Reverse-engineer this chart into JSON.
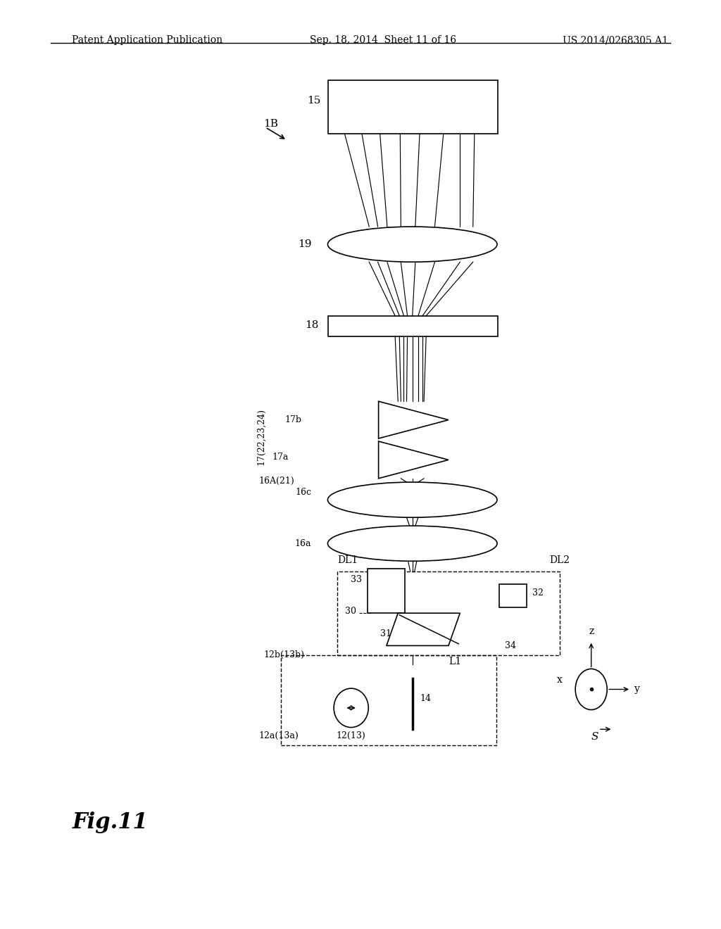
{
  "bg_color": "#ffffff",
  "line_color": "#000000",
  "header_left": "Patent Application Publication",
  "header_mid": "Sep. 18, 2014  Sheet 11 of 16",
  "header_right": "US 2014/0268305 A1",
  "fig_label": "Fig.11"
}
